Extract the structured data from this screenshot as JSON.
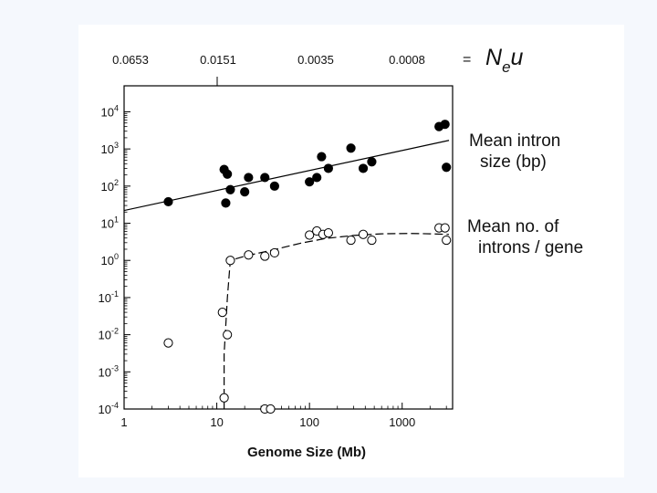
{
  "slide": {
    "background": "#f5f8fd",
    "panel_color": "#ffffff"
  },
  "chart_data": {
    "type": "scatter",
    "title": "",
    "xlabel": "Genome Size (Mb)",
    "ylabel": "",
    "x_scale": "log",
    "y_scale": "log",
    "xlim": [
      1,
      3500
    ],
    "ylim": [
      0.0001,
      50000
    ],
    "x_ticks": [
      1,
      10,
      100,
      1000
    ],
    "x_tick_labels": [
      "1",
      "10",
      "100",
      "1000"
    ],
    "y_ticks": [
      0.0001,
      0.001,
      0.01,
      0.1,
      1,
      10,
      100,
      1000,
      10000
    ],
    "y_tick_labels": [
      {
        "base": "10",
        "exp": "-4"
      },
      {
        "base": "10",
        "exp": "-3"
      },
      {
        "base": "10",
        "exp": "-2"
      },
      {
        "base": "10",
        "exp": "-1"
      },
      {
        "base": "10",
        "exp": "0"
      },
      {
        "base": "10",
        "exp": "1"
      },
      {
        "base": "10",
        "exp": "2"
      },
      {
        "base": "10",
        "exp": "3"
      },
      {
        "base": "10",
        "exp": "4"
      }
    ],
    "top_axis": {
      "values": [
        0.0653,
        0.0151,
        0.0035,
        0.0008
      ],
      "labels": [
        "0.0653",
        "0.0151",
        "0.0035",
        "0.0008"
      ],
      "equals": "=",
      "label": {
        "base": "N",
        "sub": "e",
        "tail": "u"
      }
    },
    "series": [
      {
        "name": "Mean intron size (bp)",
        "label_lines": [
          "Mean intron",
          "size (bp)"
        ],
        "marker": "filled",
        "color": "#000000",
        "points": [
          [
            3,
            38
          ],
          [
            12,
            280
          ],
          [
            12.5,
            35
          ],
          [
            13,
            210
          ],
          [
            14,
            80
          ],
          [
            20,
            70
          ],
          [
            22,
            170
          ],
          [
            33,
            170
          ],
          [
            42,
            100
          ],
          [
            100,
            130
          ],
          [
            120,
            170
          ],
          [
            135,
            620
          ],
          [
            160,
            300
          ],
          [
            280,
            1050
          ],
          [
            380,
            300
          ],
          [
            470,
            450
          ],
          [
            2500,
            4000
          ],
          [
            2900,
            4600
          ],
          [
            3000,
            320
          ]
        ],
        "fit": {
          "kind": "linear-log",
          "from": [
            1,
            22
          ],
          "to": [
            3200,
            1700
          ],
          "style": "solid"
        }
      },
      {
        "name": "Mean no. of introns / gene",
        "label_lines": [
          "Mean no. of",
          "introns / gene"
        ],
        "marker": "open",
        "color": "#000000",
        "points": [
          [
            3,
            0.006
          ],
          [
            11.5,
            0.04
          ],
          [
            12,
            0.0002
          ],
          [
            13,
            0.01
          ],
          [
            14,
            1.0
          ],
          [
            22,
            1.4
          ],
          [
            33,
            1.3
          ],
          [
            42,
            1.6
          ],
          [
            100,
            4.8
          ],
          [
            120,
            6.2
          ],
          [
            140,
            5.0
          ],
          [
            160,
            5.5
          ],
          [
            280,
            3.5
          ],
          [
            380,
            5.0
          ],
          [
            470,
            3.5
          ],
          [
            2500,
            7.5
          ],
          [
            2900,
            7.5
          ],
          [
            3000,
            3.5
          ],
          [
            33,
            0.0001
          ],
          [
            38,
            0.0001
          ]
        ],
        "fit": {
          "kind": "curve",
          "style": "dashed",
          "points": [
            [
              12,
              0.0001
            ],
            [
              12,
              0.003
            ],
            [
              13,
              0.1
            ],
            [
              14,
              1.0
            ],
            [
              20,
              1.3
            ],
            [
              40,
              1.9
            ],
            [
              80,
              2.9
            ],
            [
              150,
              3.9
            ],
            [
              300,
              4.7
            ],
            [
              600,
              5.2
            ],
            [
              1200,
              5.3
            ],
            [
              2000,
              5.2
            ],
            [
              3200,
              5.0
            ]
          ]
        }
      }
    ],
    "grid": false,
    "legend": "right, text labels beside series"
  }
}
